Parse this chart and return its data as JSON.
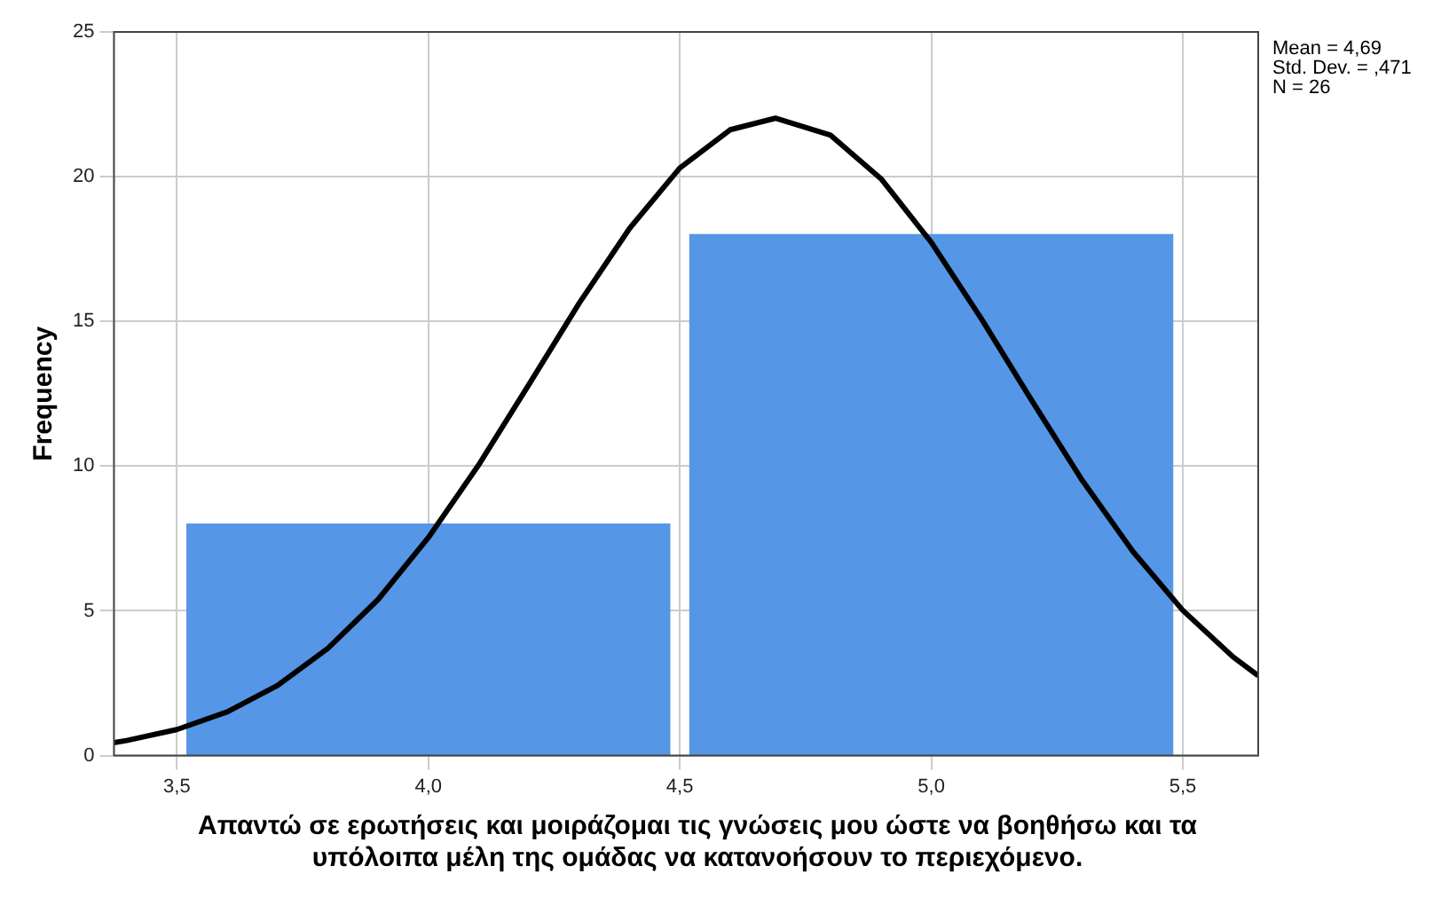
{
  "chart_data": {
    "type": "histogram",
    "ylabel": "Frequency",
    "xlabel": "Απαντώ σε ερωτήσεις και μοιράζομαι τις γνώσεις μου ώστε να βοηθήσω και τα υπόλοιπα μέλη της ομάδας να κατανοήσουν το περιεχόμενο.",
    "bins": [
      3.5,
      4.5,
      5.5
    ],
    "values": [
      8,
      18
    ],
    "color": "#5596e6",
    "series": [
      {
        "type": "line",
        "color": "#000000",
        "x": [
          3.375,
          3.4,
          3.5,
          3.6,
          3.7,
          3.8,
          3.9,
          4.0,
          4.1,
          4.2,
          4.3,
          4.4,
          4.5,
          4.6,
          4.69,
          4.8,
          4.9,
          5.0,
          5.1,
          5.2,
          5.3,
          5.4,
          5.5,
          5.6,
          5.65
        ],
        "values": [
          0.45,
          0.52,
          0.9,
          1.51,
          2.42,
          3.7,
          5.39,
          7.53,
          10.04,
          12.82,
          15.63,
          18.21,
          20.3,
          21.62,
          22.02,
          21.43,
          19.93,
          17.73,
          15.08,
          12.26,
          9.51,
          7.07,
          5.02,
          3.41,
          2.76
        ]
      }
    ],
    "xlim": [
      3.375,
      5.65
    ],
    "xticks": [
      {
        "value": 3.5,
        "label": "3,5"
      },
      {
        "value": 4.0,
        "label": "4,0"
      },
      {
        "value": 4.5,
        "label": "4,5"
      },
      {
        "value": 5.0,
        "label": "5,0"
      },
      {
        "value": 5.5,
        "label": "5,5"
      }
    ],
    "ylim": [
      0,
      25
    ],
    "yticks": [
      0,
      5,
      10,
      15,
      20,
      25
    ],
    "grid": true,
    "legend": false,
    "marker": "none",
    "annotations": [
      "Mean = 4,69",
      "Std. Dev. = ,471",
      "N = 26"
    ]
  }
}
